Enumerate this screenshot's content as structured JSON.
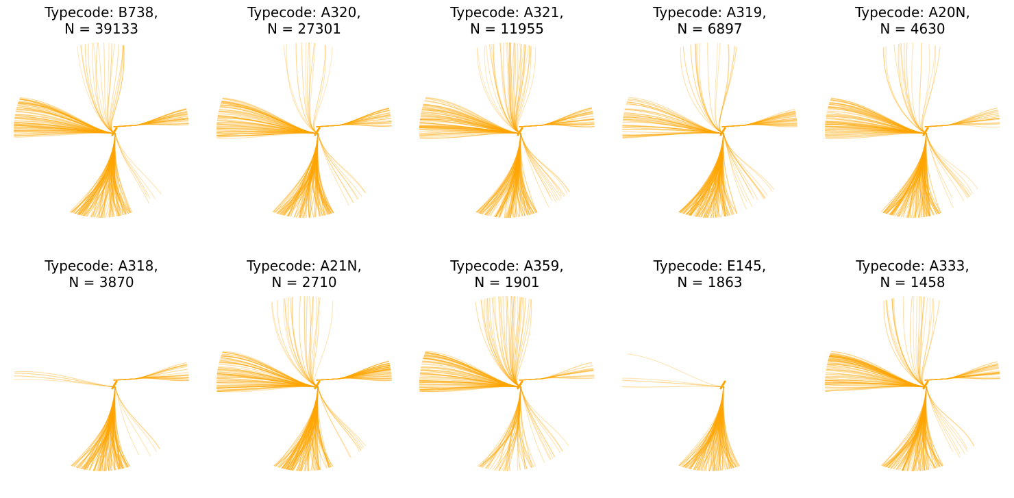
{
  "figure": {
    "line_color": "#FFA500",
    "background": "#FFFFFF",
    "axes_visible": false
  },
  "chart_data": [
    {
      "type": "line",
      "title_line1": "Typecode: B738,",
      "title_line2": "N = 39133",
      "typecode": "B738",
      "n": 39133,
      "flows": {
        "north": 0.55,
        "west": 1.0,
        "east": 0.6,
        "south": 1.0,
        "southeast": 0.2
      }
    },
    {
      "type": "line",
      "title_line1": "Typecode: A320,",
      "title_line2": "N = 27301",
      "typecode": "A320",
      "n": 27301,
      "flows": {
        "north": 0.35,
        "west": 1.0,
        "east": 0.6,
        "south": 1.0,
        "southeast": 0.3
      }
    },
    {
      "type": "line",
      "title_line1": "Typecode: A321,",
      "title_line2": "N = 11955",
      "typecode": "A321",
      "n": 11955,
      "flows": {
        "north": 1.0,
        "west": 1.0,
        "east": 0.6,
        "south": 1.0,
        "southeast": 0.5
      }
    },
    {
      "type": "line",
      "title_line1": "Typecode: A319,",
      "title_line2": "N = 6897",
      "typecode": "A319",
      "n": 6897,
      "flows": {
        "north": 0.45,
        "west": 0.6,
        "east": 0.6,
        "south": 1.0,
        "southeast": 0.5
      }
    },
    {
      "type": "line",
      "title_line1": "Typecode: A20N,",
      "title_line2": "N = 4630",
      "typecode": "A20N",
      "n": 4630,
      "flows": {
        "north": 0.45,
        "west": 1.0,
        "east": 0.4,
        "south": 1.0,
        "southeast": 0.4
      }
    },
    {
      "type": "line",
      "title_line1": "Typecode: A318,",
      "title_line2": "N = 3870",
      "typecode": "A318",
      "n": 3870,
      "flows": {
        "north": 0.0,
        "west": 0.05,
        "east": 0.4,
        "south": 1.0,
        "southeast": 0.2
      }
    },
    {
      "type": "line",
      "title_line1": "Typecode: A21N,",
      "title_line2": "N = 2710",
      "typecode": "A21N",
      "n": 2710,
      "flows": {
        "north": 0.6,
        "west": 1.0,
        "east": 1.0,
        "south": 1.0,
        "southeast": 0.3
      }
    },
    {
      "type": "line",
      "title_line1": "Typecode: A359,",
      "title_line2": "N = 1901",
      "typecode": "A359",
      "n": 1901,
      "flows": {
        "north": 1.0,
        "west": 1.0,
        "east": 0.3,
        "south": 0.4,
        "southeast": 0.4
      }
    },
    {
      "type": "line",
      "title_line1": "Typecode: E145,",
      "title_line2": "N = 1863",
      "typecode": "E145",
      "n": 1863,
      "flows": {
        "north": 0.0,
        "west": 0.05,
        "east": 0.0,
        "south": 1.0,
        "southeast": 0.0
      }
    },
    {
      "type": "line",
      "title_line1": "Typecode: A333,",
      "title_line2": "N = 1458",
      "typecode": "A333",
      "n": 1458,
      "flows": {
        "north": 0.6,
        "west": 1.0,
        "east": 0.5,
        "south": 1.0,
        "southeast": 0.3
      }
    }
  ]
}
